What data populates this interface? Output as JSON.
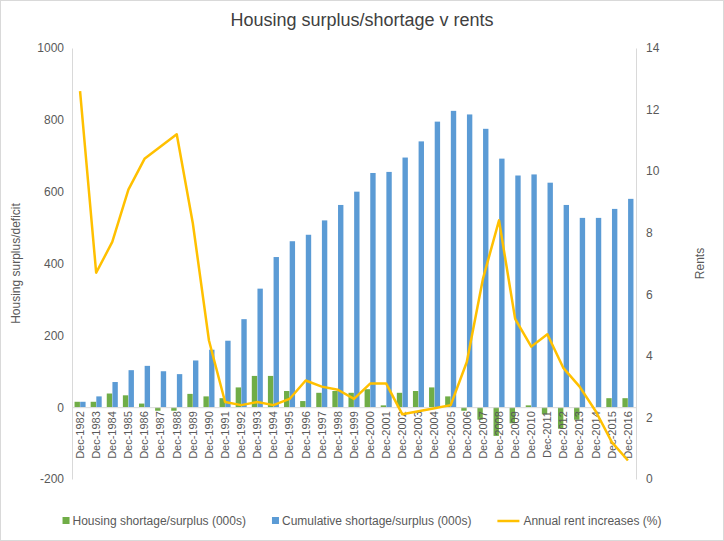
{
  "chart_data": {
    "type": "bar",
    "title": "Housing surplus/shortage v rents",
    "y_label": "Housing  surplus/deficit",
    "y2_label": "Rents",
    "categories": [
      "Dec-1982",
      "Dec-1983",
      "Dec-1984",
      "Dec-1985",
      "Dec-1986",
      "Dec-1987",
      "Dec-1988",
      "Dec-1989",
      "Dec-1990",
      "Dec-1991",
      "Dec-1992",
      "Dec-1993",
      "Dec-1994",
      "Dec-1995",
      "Dec-1996",
      "Dec-1997",
      "Dec-1998",
      "Dec-1999",
      "Dec-2000",
      "Dec-2001",
      "Dec-2002",
      "Dec-2003",
      "Dec-2004",
      "Dec-2005",
      "Dec-2006",
      "Dec-2007",
      "Dec-2008",
      "Dec-2009",
      "Dec-2010",
      "Dec-2011",
      "Dec-2012",
      "Dec-2013",
      "Dec-2014",
      "Dec-2015",
      "Dec-2016"
    ],
    "series": [
      {
        "name": "Housing shortage/surplus (000s)",
        "type": "bar",
        "color": "#70ad47",
        "values": [
          15,
          15,
          38,
          33,
          10,
          -10,
          -10,
          37,
          30,
          25,
          55,
          87,
          87,
          45,
          17,
          40,
          45,
          40,
          50,
          5,
          40,
          45,
          55,
          30,
          -10,
          -35,
          -80,
          -45,
          5,
          -20,
          -60,
          -35,
          0,
          25,
          25
        ]
      },
      {
        "name": "Cumulative shortage/surplus (000s)",
        "type": "bar",
        "color": "#5b9bd5",
        "values": [
          15,
          30,
          70,
          103,
          115,
          100,
          92,
          130,
          160,
          185,
          245,
          330,
          418,
          462,
          480,
          520,
          563,
          600,
          652,
          655,
          695,
          740,
          795,
          825,
          815,
          775,
          692,
          645,
          648,
          625,
          563,
          527,
          527,
          552,
          580
        ]
      },
      {
        "name": "Annual rent increases (%)",
        "type": "line",
        "axis": "y2",
        "color": "#ffc000",
        "values": [
          12.6,
          6.7,
          7.7,
          9.4,
          10.4,
          10.8,
          11.2,
          8.3,
          4.5,
          2.5,
          2.4,
          2.5,
          2.4,
          2.6,
          3.2,
          3.0,
          2.9,
          2.6,
          3.1,
          3.1,
          2.1,
          2.2,
          2.3,
          2.4,
          3.8,
          6.5,
          8.4,
          5.2,
          4.3,
          4.7,
          3.6,
          3.0,
          2.2,
          1.2,
          0.6
        ]
      }
    ],
    "ylim": [
      -200,
      1000
    ],
    "yticks": [
      -200,
      0,
      200,
      400,
      600,
      800,
      1000
    ],
    "y2lim": [
      0,
      14
    ],
    "y2ticks": [
      0,
      2,
      4,
      6,
      8,
      10,
      12,
      14
    ],
    "grid": false,
    "legend": "bottom"
  }
}
